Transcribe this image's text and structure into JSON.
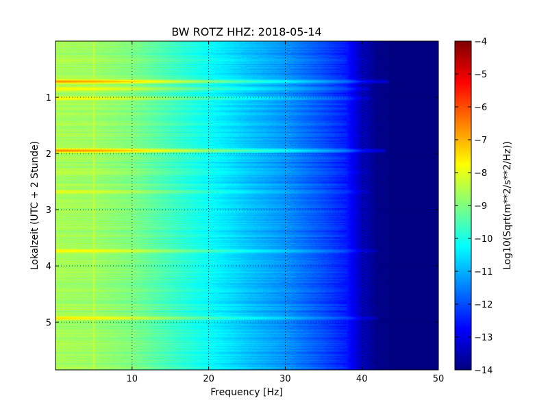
{
  "chart_data": {
    "type": "heatmap",
    "title": "BW ROTZ HHZ: 2018-05-14",
    "xlabel": "Frequency [Hz]",
    "ylabel": "Lokalzeit (UTC + 2 Stunde)",
    "colorbar_label": "Log10(Sqrt(m**2/s**2/Hz))",
    "colormap": "jet",
    "xlim": [
      0,
      50
    ],
    "ylim": [
      5.85,
      0
    ],
    "x_ticks": [
      10,
      20,
      30,
      40,
      50
    ],
    "y_ticks": [
      1,
      2,
      3,
      4,
      5
    ],
    "colorbar_range": [
      -14,
      -4
    ],
    "colorbar_ticks": [
      -14,
      -13,
      -12,
      -11,
      -10,
      -9,
      -8,
      -7,
      -6,
      -5,
      -4
    ],
    "grid": true,
    "baseline_profile": {
      "frequency_hz": [
        0,
        5,
        10,
        15,
        20,
        25,
        30,
        35,
        38,
        40,
        42,
        45,
        50
      ],
      "log10_amplitude": [
        -8.6,
        -8.7,
        -9.0,
        -9.6,
        -10.2,
        -10.8,
        -11.3,
        -12.0,
        -12.5,
        -13.4,
        -13.9,
        -14,
        -14
      ]
    },
    "event_bands": [
      {
        "time": 0.72,
        "peak": -6.6,
        "fmax": 43.5
      },
      {
        "time": 0.85,
        "peak": -7.6,
        "fmax": 41
      },
      {
        "time": 1.02,
        "peak": -7.7,
        "fmax": 41
      },
      {
        "time": 1.33,
        "peak": -8.6,
        "fmax": 41
      },
      {
        "time": 1.95,
        "peak": -6.5,
        "fmax": 43
      },
      {
        "time": 2.33,
        "peak": -8.3,
        "fmax": 41
      },
      {
        "time": 2.68,
        "peak": -7.9,
        "fmax": 41
      },
      {
        "time": 2.85,
        "peak": -8.5,
        "fmax": 41
      },
      {
        "time": 3.18,
        "peak": -9.0,
        "fmax": 41
      },
      {
        "time": 3.73,
        "peak": -7.6,
        "fmax": 42
      },
      {
        "time": 4.48,
        "peak": -8.9,
        "fmax": 41
      },
      {
        "time": 4.93,
        "peak": -7.4,
        "fmax": 42
      },
      {
        "time": 5.57,
        "peak": -8.9,
        "fmax": 40
      }
    ],
    "narrowband_line": {
      "frequency_hz": 5,
      "log10_amplitude": -8.2
    }
  }
}
